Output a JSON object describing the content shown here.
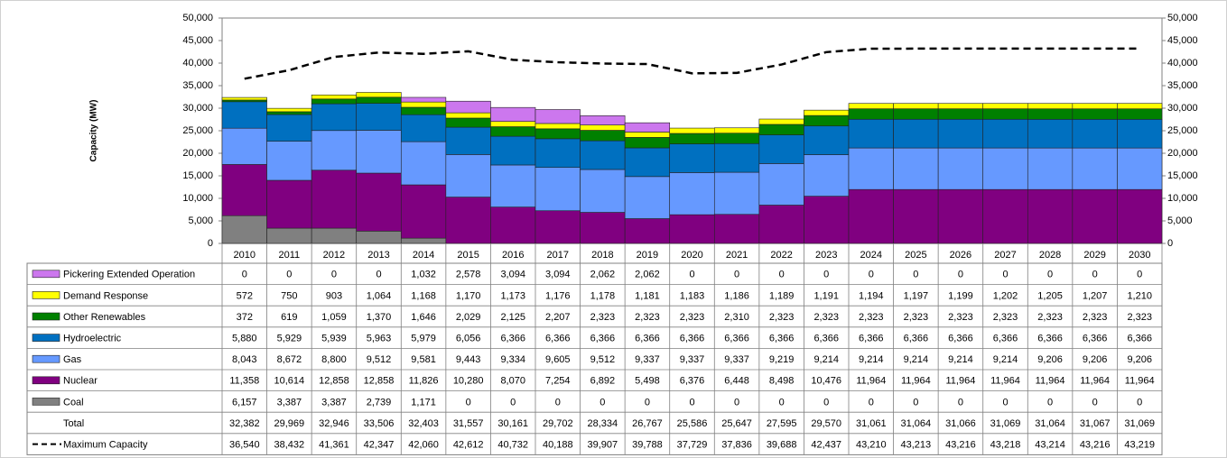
{
  "chart_data": {
    "type": "bar",
    "stacked": true,
    "y_label": "Capacity (MW)",
    "categories": [
      "2010",
      "2011",
      "2012",
      "2013",
      "2014",
      "2015",
      "2016",
      "2017",
      "2018",
      "2019",
      "2020",
      "2021",
      "2022",
      "2023",
      "2024",
      "2025",
      "2026",
      "2027",
      "2028",
      "2029",
      "2030"
    ],
    "ylim": [
      0,
      50000
    ],
    "yticks": [
      0,
      {
        "value": 5000,
        "label": "5,000"
      },
      {
        "value": 10000,
        "label": "10,000"
      },
      {
        "value": 15000,
        "label": "15,000"
      },
      {
        "value": 20000,
        "label": "20,000"
      },
      {
        "value": 25000,
        "label": "25,000"
      },
      {
        "value": 30000,
        "label": "30,000"
      },
      {
        "value": 35000,
        "label": "35,000"
      },
      {
        "value": 40000,
        "label": "40,000"
      },
      {
        "value": 45000,
        "label": "45,000"
      },
      {
        "value": 50000,
        "label": "50,000"
      }
    ],
    "y2lim": [
      0,
      50000
    ],
    "y2ticks": [
      0,
      {
        "value": 5000,
        "label": "5,000"
      },
      {
        "value": 10000,
        "label": "10,000"
      },
      {
        "value": 15000,
        "label": "15,000"
      },
      {
        "value": 20000,
        "label": "20,000"
      },
      {
        "value": 25000,
        "label": "25,000"
      },
      {
        "value": 30000,
        "label": "30,000"
      },
      {
        "value": 35000,
        "label": "35,000"
      },
      {
        "value": 40000,
        "label": "40,000"
      },
      {
        "value": 45000,
        "label": "45,000"
      },
      {
        "value": 50000,
        "label": "50,000"
      }
    ],
    "series": [
      {
        "name": "Pickering Extended Operation",
        "color": "#cc77ee",
        "values": [
          0,
          0,
          0,
          0,
          1032,
          2578,
          3094,
          3094,
          2062,
          2062,
          0,
          0,
          0,
          0,
          0,
          0,
          0,
          0,
          0,
          0,
          0
        ],
        "value_labels": [
          "0",
          "0",
          "0",
          "0",
          "1,032",
          "2,578",
          "3,094",
          "3,094",
          "2,062",
          "2,062",
          "0",
          "0",
          "0",
          "0",
          "0",
          "0",
          "0",
          "0",
          "0",
          "0",
          "0"
        ]
      },
      {
        "name": "Demand Response",
        "color": "#ffff00",
        "values": [
          572,
          750,
          903,
          1064,
          1168,
          1170,
          1173,
          1176,
          1178,
          1181,
          1183,
          1186,
          1189,
          1191,
          1194,
          1197,
          1199,
          1202,
          1205,
          1207,
          1210
        ],
        "value_labels": [
          "572",
          "750",
          "903",
          "1,064",
          "1,168",
          "1,170",
          "1,173",
          "1,176",
          "1,178",
          "1,181",
          "1,183",
          "1,186",
          "1,189",
          "1,191",
          "1,194",
          "1,197",
          "1,199",
          "1,202",
          "1,205",
          "1,207",
          "1,210"
        ]
      },
      {
        "name": "Other Renewables",
        "color": "#008000",
        "values": [
          372,
          619,
          1059,
          1370,
          1646,
          2029,
          2125,
          2207,
          2323,
          2323,
          2323,
          2310,
          2323,
          2323,
          2323,
          2323,
          2323,
          2323,
          2323,
          2323,
          2323
        ],
        "value_labels": [
          "372",
          "619",
          "1,059",
          "1,370",
          "1,646",
          "2,029",
          "2,125",
          "2,207",
          "2,323",
          "2,323",
          "2,323",
          "2,310",
          "2,323",
          "2,323",
          "2,323",
          "2,323",
          "2,323",
          "2,323",
          "2,323",
          "2,323",
          "2,323"
        ]
      },
      {
        "name": "Hydroelectric",
        "color": "#0070c0",
        "values": [
          5880,
          5929,
          5939,
          5963,
          5979,
          6056,
          6366,
          6366,
          6366,
          6366,
          6366,
          6366,
          6366,
          6366,
          6366,
          6366,
          6366,
          6366,
          6366,
          6366,
          6366
        ],
        "value_labels": [
          "5,880",
          "5,929",
          "5,939",
          "5,963",
          "5,979",
          "6,056",
          "6,366",
          "6,366",
          "6,366",
          "6,366",
          "6,366",
          "6,366",
          "6,366",
          "6,366",
          "6,366",
          "6,366",
          "6,366",
          "6,366",
          "6,366",
          "6,366",
          "6,366"
        ]
      },
      {
        "name": "Gas",
        "color": "#6699ff",
        "values": [
          8043,
          8672,
          8800,
          9512,
          9581,
          9443,
          9334,
          9605,
          9512,
          9337,
          9337,
          9337,
          9219,
          9214,
          9214,
          9214,
          9214,
          9214,
          9206,
          9206,
          9206
        ],
        "value_labels": [
          "8,043",
          "8,672",
          "8,800",
          "9,512",
          "9,581",
          "9,443",
          "9,334",
          "9,605",
          "9,512",
          "9,337",
          "9,337",
          "9,337",
          "9,219",
          "9,214",
          "9,214",
          "9,214",
          "9,214",
          "9,214",
          "9,206",
          "9,206",
          "9,206"
        ]
      },
      {
        "name": "Nuclear",
        "color": "#800080",
        "values": [
          11358,
          10614,
          12858,
          12858,
          11826,
          10280,
          8070,
          7254,
          6892,
          5498,
          6376,
          6448,
          8498,
          10476,
          11964,
          11964,
          11964,
          11964,
          11964,
          11964,
          11964
        ],
        "value_labels": [
          "11,358",
          "10,614",
          "12,858",
          "12,858",
          "11,826",
          "10,280",
          "8,070",
          "7,254",
          "6,892",
          "5,498",
          "6,376",
          "6,448",
          "8,498",
          "10,476",
          "11,964",
          "11,964",
          "11,964",
          "11,964",
          "11,964",
          "11,964",
          "11,964"
        ]
      },
      {
        "name": "Coal",
        "color": "#808080",
        "values": [
          6157,
          3387,
          3387,
          2739,
          1171,
          0,
          0,
          0,
          0,
          0,
          0,
          0,
          0,
          0,
          0,
          0,
          0,
          0,
          0,
          0,
          0
        ],
        "value_labels": [
          "6,157",
          "3,387",
          "3,387",
          "2,739",
          "1,171",
          "0",
          "0",
          "0",
          "0",
          "0",
          "0",
          "0",
          "0",
          "0",
          "0",
          "0",
          "0",
          "0",
          "0",
          "0",
          "0"
        ]
      }
    ],
    "total": {
      "name": "Total",
      "values": [
        32382,
        29969,
        32946,
        33506,
        32403,
        31557,
        30161,
        29702,
        28334,
        26767,
        25586,
        25647,
        27595,
        29570,
        31061,
        31064,
        31066,
        31069,
        31064,
        31067,
        31069
      ],
      "value_labels": [
        "32,382",
        "29,969",
        "32,946",
        "33,506",
        "32,403",
        "31,557",
        "30,161",
        "29,702",
        "28,334",
        "26,767",
        "25,586",
        "25,647",
        "27,595",
        "29,570",
        "31,061",
        "31,064",
        "31,066",
        "31,069",
        "31,064",
        "31,067",
        "31,069"
      ]
    },
    "line_series": {
      "name": "Maximum Capacity",
      "color": "#000000",
      "dashed": true,
      "values": [
        36540,
        38432,
        41361,
        42347,
        42060,
        42612,
        40732,
        40188,
        39907,
        39788,
        37729,
        37836,
        39688,
        42437,
        43210,
        43213,
        43216,
        43218,
        43214,
        43216,
        43219
      ],
      "value_labels": [
        "36,540",
        "38,432",
        "41,361",
        "42,347",
        "42,060",
        "42,612",
        "40,732",
        "40,188",
        "39,907",
        "39,788",
        "37,729",
        "37,836",
        "39,688",
        "42,437",
        "43,210",
        "43,213",
        "43,216",
        "43,218",
        "43,214",
        "43,216",
        "43,219"
      ]
    }
  }
}
